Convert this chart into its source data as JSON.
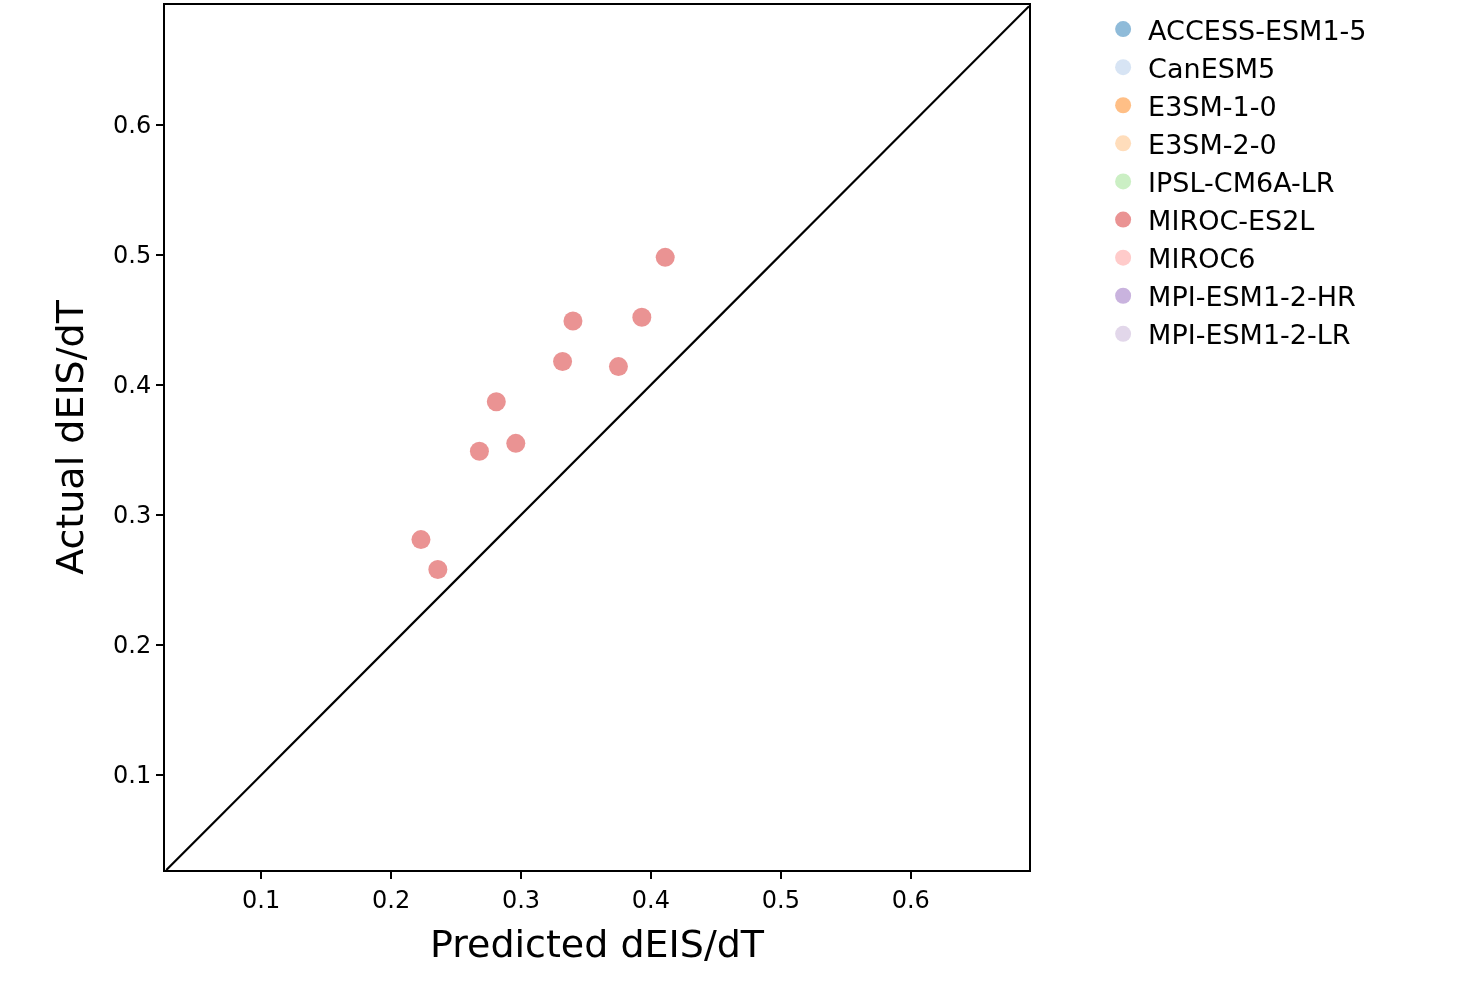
{
  "chart_data": {
    "type": "scatter",
    "xlabel": "Predicted dEIS/dT",
    "ylabel": "Actual dEIS/dT",
    "xlim": [
      0.026,
      0.691
    ],
    "ylim": [
      0.027,
      0.692
    ],
    "xticks": [
      0.1,
      0.2,
      0.3,
      0.4,
      0.5,
      0.6
    ],
    "yticks": [
      0.1,
      0.2,
      0.3,
      0.4,
      0.5,
      0.6
    ],
    "grid": false,
    "legend": "top right",
    "marker": "circle",
    "series": [
      {
        "name": "ACCESS-ESM1-5",
        "color": "#8fbbd9"
      },
      {
        "name": "CanESM5",
        "color": "#d7e4f4"
      },
      {
        "name": "E3SM-1-0",
        "color": "#ffbf86"
      },
      {
        "name": "E3SM-2-0",
        "color": "#ffddbb"
      },
      {
        "name": "IPSL-CM6A-LR",
        "color": "#cbefc4"
      },
      {
        "name": "MIROC-ES2L",
        "color": "#ea9393",
        "x": [
          0.223,
          0.236,
          0.268,
          0.281,
          0.296,
          0.332,
          0.34,
          0.375,
          0.393,
          0.411
        ],
        "values": [
          0.281,
          0.258,
          0.349,
          0.387,
          0.355,
          0.418,
          0.449,
          0.414,
          0.452,
          0.498
        ]
      },
      {
        "name": "MIROC6",
        "color": "#ffcbca"
      },
      {
        "name": "MPI-ESM1-2-HR",
        "color": "#c9b3de"
      },
      {
        "name": "MPI-ESM1-2-LR",
        "color": "#e2d7ea"
      },
      {
        "type": "line",
        "marker": "none",
        "color": "#000000",
        "x": [
          0.027,
          0.691
        ],
        "values": [
          0.027,
          0.691
        ]
      }
    ]
  }
}
